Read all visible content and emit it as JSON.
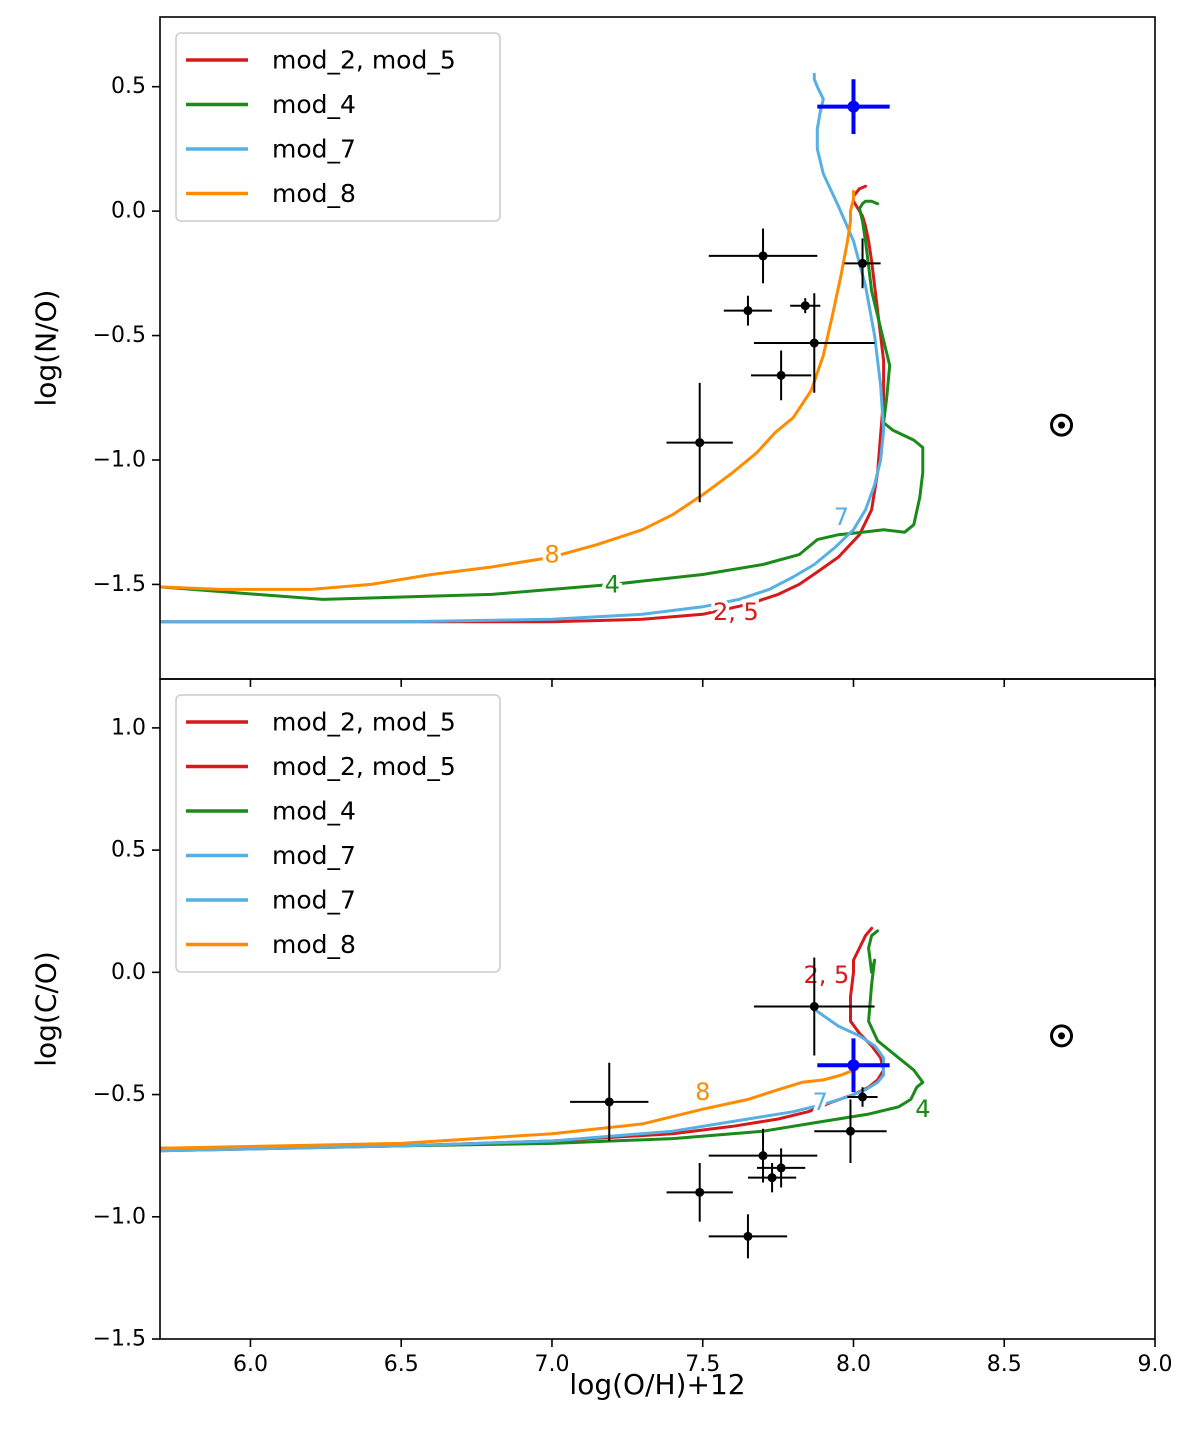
{
  "chart_data": [
    {
      "type": "line",
      "panel": "top",
      "ylabel": "log(N/O)",
      "xlabel": "",
      "xlim": [
        5.7,
        9.0
      ],
      "ylim": [
        -1.88,
        0.78
      ],
      "yticks": [
        0.5,
        0.0,
        -0.5,
        -1.0,
        -1.5
      ],
      "ytick_labels": [
        "0.5",
        "0.0",
        "−0.5",
        "−1.0",
        "−1.5"
      ],
      "xticks": [
        6.0,
        6.5,
        7.0,
        7.5,
        8.0,
        8.5,
        9.0
      ],
      "grid": false,
      "legend_position": "top-left",
      "legend": [
        {
          "label": "mod_2, mod_5",
          "color": "#d7191c"
        },
        {
          "label": "mod_4",
          "color": "#1a8a1a"
        },
        {
          "label": "mod_7",
          "color": "#56b0e3"
        },
        {
          "label": "mod_8",
          "color": "#ff8c00"
        }
      ],
      "series": [
        {
          "name": "mod_2, mod_5",
          "color": "#d7191c",
          "x": [
            5.7,
            6.5,
            7.0,
            7.3,
            7.5,
            7.65,
            7.75,
            7.82,
            7.88,
            7.95,
            8.02,
            8.06,
            8.08,
            8.09,
            8.1,
            8.1,
            8.09,
            8.08,
            8.07,
            8.06,
            8.05,
            8.04,
            8.03,
            8.02,
            8.01,
            8.0,
            8.0,
            8.02,
            8.04
          ],
          "y": [
            -1.65,
            -1.65,
            -1.65,
            -1.64,
            -1.62,
            -1.58,
            -1.54,
            -1.5,
            -1.45,
            -1.39,
            -1.3,
            -1.2,
            -1.05,
            -0.9,
            -0.75,
            -0.6,
            -0.5,
            -0.4,
            -0.3,
            -0.2,
            -0.12,
            -0.06,
            -0.02,
            0.0,
            0.02,
            0.04,
            0.06,
            0.09,
            0.1
          ]
        },
        {
          "name": "mod_4",
          "color": "#1a8a1a",
          "x": [
            5.7,
            6.24,
            6.8,
            7.2,
            7.5,
            7.7,
            7.82,
            7.88,
            7.95,
            8.03,
            8.1,
            8.17,
            8.2,
            8.22,
            8.23,
            8.23,
            8.2,
            8.13,
            8.1,
            8.11,
            8.12,
            8.1,
            8.08,
            8.06,
            8.05,
            8.04,
            8.03,
            8.02,
            8.03,
            8.04,
            8.06,
            8.08
          ],
          "y": [
            -1.51,
            -1.56,
            -1.54,
            -1.5,
            -1.46,
            -1.42,
            -1.38,
            -1.32,
            -1.3,
            -1.29,
            -1.28,
            -1.29,
            -1.26,
            -1.15,
            -1.05,
            -0.95,
            -0.92,
            -0.88,
            -0.85,
            -0.75,
            -0.62,
            -0.52,
            -0.42,
            -0.32,
            -0.22,
            -0.12,
            -0.04,
            0.01,
            0.03,
            0.04,
            0.04,
            0.03
          ]
        },
        {
          "name": "mod_7",
          "color": "#56b0e3",
          "x": [
            5.7,
            6.5,
            7.0,
            7.3,
            7.5,
            7.62,
            7.72,
            7.8,
            7.87,
            7.94,
            8.0,
            8.04,
            8.07,
            8.09,
            8.1,
            8.09,
            8.07,
            8.04,
            8.0,
            7.95,
            7.9,
            7.88,
            7.88,
            7.89,
            7.9,
            7.88,
            7.87,
            7.87
          ],
          "y": [
            -1.65,
            -1.65,
            -1.64,
            -1.62,
            -1.59,
            -1.56,
            -1.52,
            -1.47,
            -1.42,
            -1.35,
            -1.28,
            -1.2,
            -1.1,
            -1.0,
            -0.88,
            -0.7,
            -0.5,
            -0.3,
            -0.12,
            0.02,
            0.15,
            0.25,
            0.33,
            0.4,
            0.45,
            0.5,
            0.53,
            0.55
          ]
        },
        {
          "name": "mod_8",
          "color": "#ff8c00",
          "x": [
            5.7,
            5.9,
            6.2,
            6.4,
            6.6,
            6.8,
            7.0,
            7.15,
            7.3,
            7.4,
            7.5,
            7.6,
            7.68,
            7.74,
            7.8,
            7.86,
            7.9,
            7.93,
            7.96,
            7.98,
            7.99,
            7.99,
            8.0,
            8.0,
            8.0
          ],
          "y": [
            -1.51,
            -1.52,
            -1.52,
            -1.5,
            -1.46,
            -1.43,
            -1.39,
            -1.34,
            -1.28,
            -1.22,
            -1.14,
            -1.05,
            -0.97,
            -0.89,
            -0.83,
            -0.72,
            -0.58,
            -0.42,
            -0.25,
            -0.12,
            -0.04,
            0.0,
            0.05,
            0.07,
            0.08
          ]
        }
      ],
      "curve_labels": [
        {
          "text": "8",
          "x": 7.0,
          "y": -1.38,
          "color": "#ff8c00"
        },
        {
          "text": "4",
          "x": 7.2,
          "y": -1.5,
          "color": "#1a8a1a"
        },
        {
          "text": "2, 5",
          "x": 7.61,
          "y": -1.61,
          "color": "#d7191c"
        },
        {
          "text": "7",
          "x": 7.96,
          "y": -1.23,
          "color": "#56b0e3"
        }
      ],
      "observations": [
        {
          "x": 7.7,
          "y": -0.18,
          "xerr": 0.18,
          "yerr": 0.11
        },
        {
          "x": 7.65,
          "y": -0.4,
          "xerr": 0.08,
          "yerr": 0.06
        },
        {
          "x": 7.84,
          "y": -0.38,
          "xerr": 0.05,
          "yerr": 0.03
        },
        {
          "x": 7.87,
          "y": -0.53,
          "xerr": 0.2,
          "yerr": 0.2
        },
        {
          "x": 7.76,
          "y": -0.66,
          "xerr": 0.1,
          "yerr": 0.1
        },
        {
          "x": 7.49,
          "y": -0.93,
          "xerr": 0.11,
          "yerr": 0.24
        },
        {
          "x": 8.03,
          "y": -0.21,
          "xerr": 0.06,
          "yerr": 0.1
        }
      ],
      "highlight_point": {
        "x": 8.0,
        "y": 0.42,
        "xerr": 0.12,
        "yerr": 0.11,
        "color": "#0000ff"
      },
      "solar_marker": {
        "x": 8.69,
        "y": -0.86,
        "symbol": "⊙"
      }
    },
    {
      "type": "line",
      "panel": "bottom",
      "ylabel": "log(C/O)",
      "xlabel": "log(O/H)+12",
      "xlim": [
        5.7,
        9.0
      ],
      "ylim": [
        -1.5,
        1.2
      ],
      "yticks": [
        1.0,
        0.5,
        0.0,
        -0.5,
        -1.0,
        -1.5
      ],
      "ytick_labels": [
        "1.0",
        "0.5",
        "0.0",
        "−0.5",
        "−1.0",
        "−1.5"
      ],
      "xticks": [
        6.0,
        6.5,
        7.0,
        7.5,
        8.0,
        8.5,
        9.0
      ],
      "xtick_labels": [
        "6.0",
        "6.5",
        "7.0",
        "7.5",
        "8.0",
        "8.5",
        "9.0"
      ],
      "grid": false,
      "legend_position": "top-left",
      "legend": [
        {
          "label": "mod_2, mod_5",
          "color": "#d7191c"
        },
        {
          "label": "mod_2, mod_5",
          "color": "#d7191c"
        },
        {
          "label": "mod_4",
          "color": "#1a8a1a"
        },
        {
          "label": "mod_7",
          "color": "#56b0e3"
        },
        {
          "label": "mod_7",
          "color": "#56b0e3"
        },
        {
          "label": "mod_8",
          "color": "#ff8c00"
        }
      ],
      "series": [
        {
          "name": "mod_2, mod_5",
          "color": "#d7191c",
          "x": [
            5.7,
            6.5,
            7.0,
            7.4,
            7.6,
            7.75,
            7.85,
            7.93,
            8.0,
            8.05,
            8.08,
            8.1,
            8.09,
            8.06,
            8.02,
            7.99,
            7.99,
            8.0,
            8.0,
            8.02,
            8.04,
            8.06
          ],
          "y": [
            -0.73,
            -0.71,
            -0.69,
            -0.66,
            -0.63,
            -0.6,
            -0.57,
            -0.53,
            -0.5,
            -0.47,
            -0.44,
            -0.4,
            -0.35,
            -0.3,
            -0.25,
            -0.2,
            -0.1,
            0.0,
            0.05,
            0.1,
            0.15,
            0.18
          ]
        },
        {
          "name": "mod_4",
          "color": "#1a8a1a",
          "x": [
            5.7,
            6.5,
            7.0,
            7.4,
            7.7,
            7.9,
            8.05,
            8.15,
            8.19,
            8.21,
            8.23,
            8.2,
            8.15,
            8.08,
            8.05,
            8.06,
            8.07,
            8.06,
            8.05,
            8.06,
            8.08
          ],
          "y": [
            -0.72,
            -0.71,
            -0.7,
            -0.68,
            -0.65,
            -0.61,
            -0.58,
            -0.55,
            -0.52,
            -0.47,
            -0.45,
            -0.4,
            -0.35,
            -0.28,
            -0.2,
            -0.05,
            0.05,
            0.0,
            0.1,
            0.15,
            0.17
          ]
        },
        {
          "name": "mod_7",
          "color": "#56b0e3",
          "x": [
            5.7,
            6.5,
            7.0,
            7.4,
            7.65,
            7.8,
            7.9,
            7.98,
            8.04,
            8.08,
            8.1,
            8.1,
            8.07,
            8.02,
            7.95,
            7.88
          ],
          "y": [
            -0.73,
            -0.71,
            -0.69,
            -0.65,
            -0.6,
            -0.57,
            -0.54,
            -0.51,
            -0.48,
            -0.45,
            -0.42,
            -0.35,
            -0.3,
            -0.26,
            -0.22,
            -0.16
          ]
        },
        {
          "name": "mod_8",
          "color": "#ff8c00",
          "x": [
            5.7,
            6.5,
            7.0,
            7.3,
            7.5,
            7.65,
            7.75,
            7.83,
            7.9,
            7.96,
            8.0
          ],
          "y": [
            -0.72,
            -0.7,
            -0.66,
            -0.62,
            -0.56,
            -0.52,
            -0.48,
            -0.45,
            -0.44,
            -0.42,
            -0.4
          ]
        }
      ],
      "curve_labels": [
        {
          "text": "2, 5",
          "x": 7.91,
          "y": -0.01,
          "color": "#d7191c"
        },
        {
          "text": "8",
          "x": 7.5,
          "y": -0.49,
          "color": "#ff8c00"
        },
        {
          "text": "7",
          "x": 7.89,
          "y": -0.53,
          "color": "#56b0e3"
        },
        {
          "text": "4",
          "x": 8.23,
          "y": -0.56,
          "color": "#1a8a1a"
        }
      ],
      "observations": [
        {
          "x": 7.87,
          "y": -0.14,
          "xerr": 0.2,
          "yerr": 0.2
        },
        {
          "x": 7.19,
          "y": -0.53,
          "xerr": 0.13,
          "yerr": 0.16
        },
        {
          "x": 8.03,
          "y": -0.51,
          "xerr": 0.05,
          "yerr": 0.04
        },
        {
          "x": 7.99,
          "y": -0.65,
          "xerr": 0.12,
          "yerr": 0.13
        },
        {
          "x": 7.7,
          "y": -0.75,
          "xerr": 0.18,
          "yerr": 0.11
        },
        {
          "x": 7.76,
          "y": -0.8,
          "xerr": 0.08,
          "yerr": 0.08
        },
        {
          "x": 7.73,
          "y": -0.84,
          "xerr": 0.08,
          "yerr": 0.06
        },
        {
          "x": 7.49,
          "y": -0.9,
          "xerr": 0.11,
          "yerr": 0.12
        },
        {
          "x": 7.65,
          "y": -1.08,
          "xerr": 0.13,
          "yerr": 0.09
        }
      ],
      "highlight_point": {
        "x": 8.0,
        "y": -0.38,
        "xerr": 0.12,
        "yerr": 0.11,
        "color": "#0000ff"
      },
      "solar_marker": {
        "x": 8.69,
        "y": -0.26,
        "symbol": "⊙"
      }
    }
  ]
}
